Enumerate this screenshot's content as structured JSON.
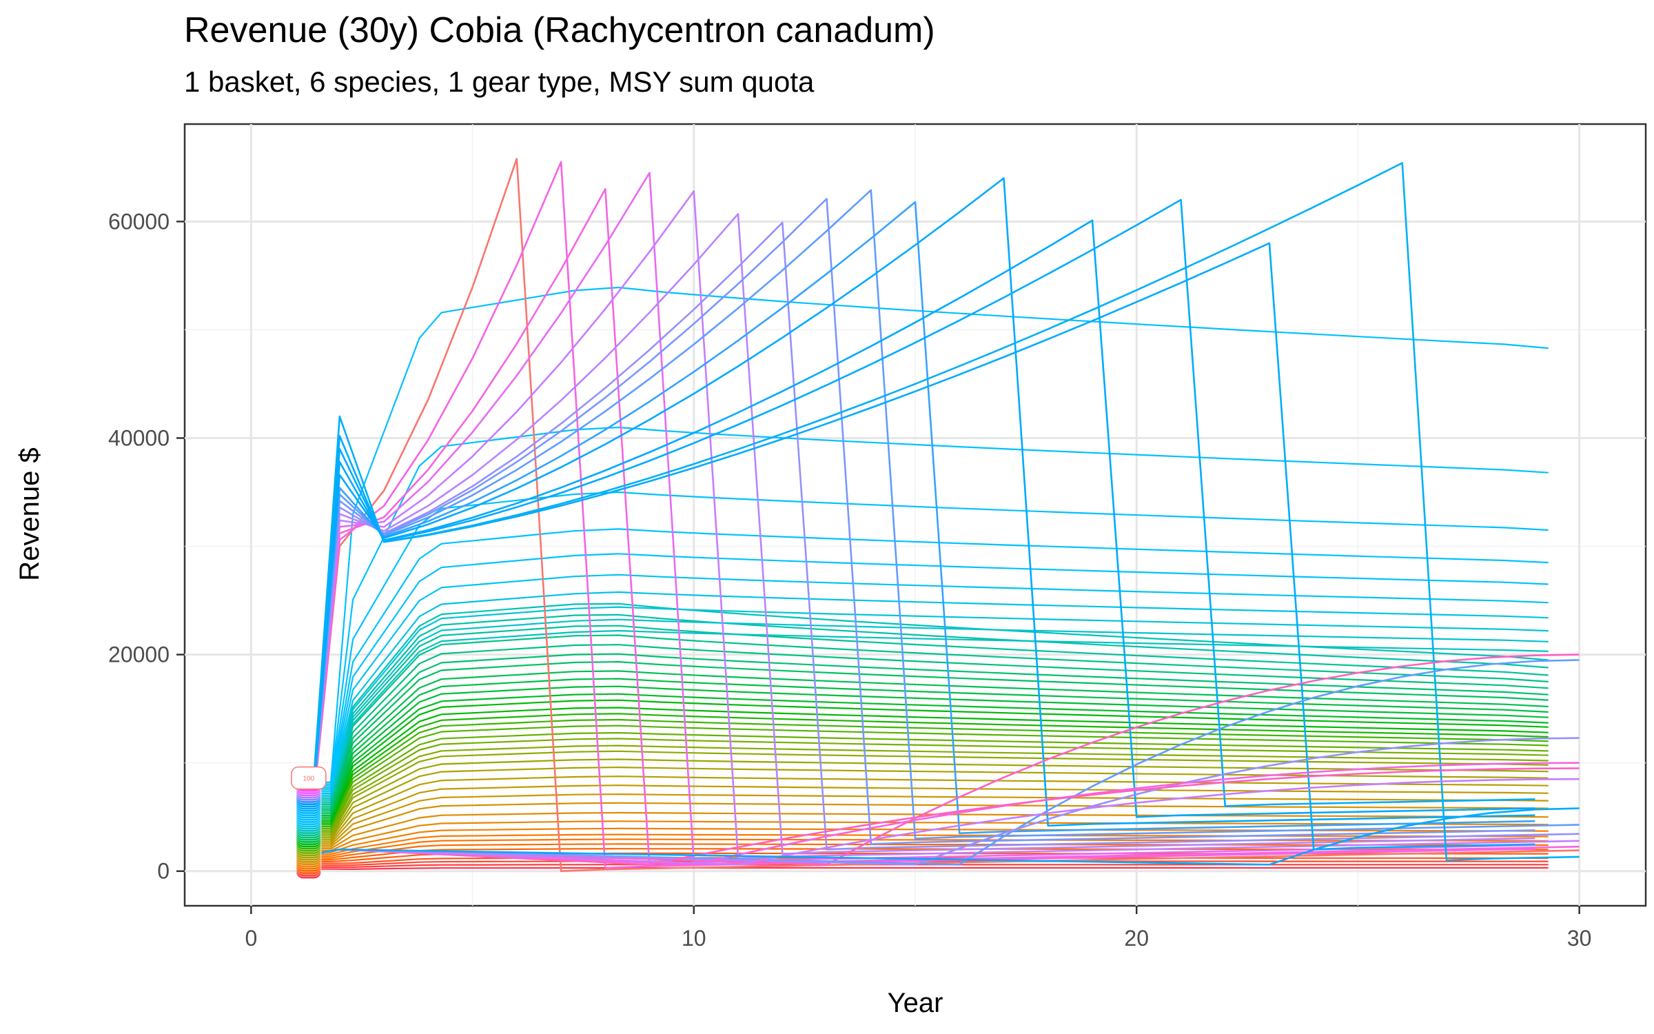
{
  "chart_data": {
    "type": "line",
    "title": "Revenue (30y) Cobia (Rachycentron canadum)",
    "subtitle": "1 basket, 6 species, 1 gear type, MSY sum quota",
    "xlabel": "Year",
    "ylabel": "Revenue $",
    "xlim": [
      -1.5,
      31.5
    ],
    "ylim": [
      -3200,
      69000
    ],
    "x_ticks": [
      0,
      10,
      20,
      30
    ],
    "x_tick_labels": [
      "0",
      "10",
      "20",
      "30"
    ],
    "y_ticks": [
      0,
      20000,
      40000,
      60000
    ],
    "y_tick_labels": [
      "0",
      "20000",
      "40000",
      "60000"
    ],
    "grid": true,
    "legend": "none",
    "start_label": "100",
    "series_groups": {
      "collapse": {
        "description": "Runs that rise to a peak and then collapse",
        "series": [
          {
            "collapse_year": 6,
            "peak": 65800,
            "floor": 0,
            "color": "#F8766D"
          },
          {
            "collapse_year": 7,
            "peak": 65500,
            "floor": 300,
            "color": "#F564E3"
          },
          {
            "collapse_year": 8,
            "peak": 63000,
            "floor": 500,
            "color": "#F564E3"
          },
          {
            "collapse_year": 9,
            "peak": 64500,
            "floor": 800,
            "color": "#E76BF3"
          },
          {
            "collapse_year": 10,
            "peak": 62800,
            "floor": 1200,
            "color": "#C77CFF"
          },
          {
            "collapse_year": 11,
            "peak": 60700,
            "floor": 1600,
            "color": "#B983FF"
          },
          {
            "collapse_year": 12,
            "peak": 59900,
            "floor": 2000,
            "color": "#9590FF"
          },
          {
            "collapse_year": 13,
            "peak": 62100,
            "floor": 2500,
            "color": "#7997FF"
          },
          {
            "collapse_year": 14,
            "peak": 62900,
            "floor": 3000,
            "color": "#619CFF"
          },
          {
            "collapse_year": 15,
            "peak": 61800,
            "floor": 3500,
            "color": "#35A2FF"
          },
          {
            "collapse_year": 17,
            "peak": 64000,
            "floor": 4200,
            "color": "#00A9FF"
          },
          {
            "collapse_year": 19,
            "peak": 60100,
            "floor": 5000,
            "color": "#00A9FF"
          },
          {
            "collapse_year": 21,
            "peak": 62000,
            "floor": 6000,
            "color": "#00ABFD"
          },
          {
            "collapse_year": 23,
            "peak": 58000,
            "floor": 2000,
            "color": "#00ABFD"
          },
          {
            "collapse_year": 26,
            "peak": 65400,
            "floor": 1000,
            "color": "#00B0F6"
          }
        ]
      },
      "sustained": {
        "description": "Runs that plateau and persist to year 30",
        "end_values_at_year_30": [
          48300,
          36800,
          31500,
          28500,
          26500,
          24800,
          23400,
          22200,
          21200,
          20300,
          19500,
          18800,
          18100,
          17500,
          16900,
          16300,
          15800,
          15200,
          14700,
          14200,
          13700,
          13300,
          12800,
          12400,
          12000,
          11600,
          11100,
          10700,
          10200,
          9800,
          9200,
          8600,
          7900,
          7200,
          6500,
          5800,
          5000,
          4300,
          3700,
          3200,
          2800,
          2400,
          2000,
          1600,
          1200,
          900,
          600,
          300
        ]
      },
      "recovery": {
        "description": "Runs that collapse and later recover",
        "series": [
          {
            "recover_from_year": 13,
            "end_value": 20000,
            "color": "#FF61C3"
          },
          {
            "recover_from_year": 16,
            "end_value": 19500,
            "color": "#619CFF"
          },
          {
            "recover_from_year": 15,
            "end_value": 12300,
            "color": "#9590FF"
          },
          {
            "recover_from_year": 10,
            "end_value": 10000,
            "color": "#F564E3"
          },
          {
            "recover_from_year": 9,
            "end_value": 9500,
            "color": "#FF61C3"
          },
          {
            "recover_from_year": 11,
            "end_value": 8500,
            "color": "#C77CFF"
          },
          {
            "recover_from_year": 23,
            "end_value": 5800,
            "color": "#00A9FF"
          }
        ]
      }
    }
  }
}
